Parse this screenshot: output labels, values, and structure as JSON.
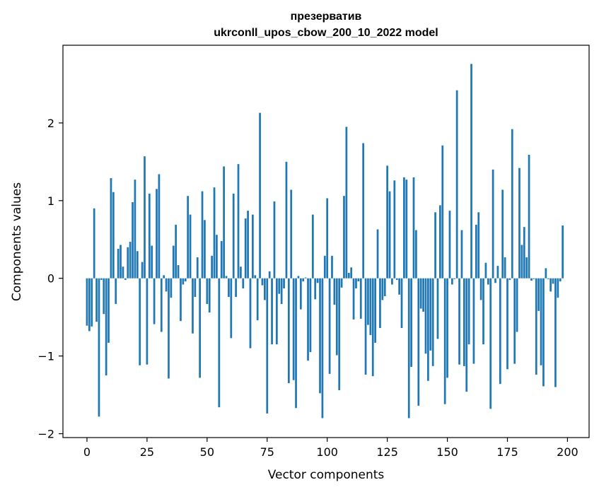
{
  "chart_data": {
    "type": "bar",
    "title_lines": [
      "презерватив",
      "ukrconll_upos_cbow_200_10_2022 model"
    ],
    "xlabel": "Vector components",
    "ylabel": "Components values",
    "xlim": [
      -10,
      209
    ],
    "ylim": [
      -2.05,
      3.0
    ],
    "xticks": [
      0,
      25,
      50,
      75,
      100,
      125,
      150,
      175,
      200
    ],
    "yticks": [
      -2,
      -1,
      0,
      1,
      2
    ],
    "ytick_labels": [
      "−2",
      "−1",
      "0",
      "1",
      "2"
    ],
    "grid": false,
    "bar_color": "#1f77b4",
    "series": [
      {
        "x_start": 0,
        "values": [
          -0.61,
          -0.68,
          -0.62,
          0.9,
          -0.56,
          -1.78,
          -0.02,
          -0.46,
          -1.25,
          -0.83,
          1.29,
          1.11,
          -0.33,
          0.38,
          0.43,
          0.15,
          -0.02,
          0.4,
          0.47,
          0.98,
          1.27,
          0.35,
          -1.12,
          0.21,
          1.57,
          -1.11,
          1.09,
          0.42,
          -0.59,
          1.15,
          1.34,
          -0.69,
          0.04,
          -0.17,
          -1.29,
          -0.25,
          0.42,
          0.69,
          0.17,
          -0.55,
          -0.08,
          -0.04,
          1.06,
          0.82,
          -0.71,
          -0.24,
          0.27,
          -1.28,
          1.12,
          0.75,
          -0.33,
          -0.44,
          0.29,
          1.17,
          0.56,
          -1.66,
          0.48,
          1.44,
          0.03,
          -0.24,
          -0.77,
          1.09,
          -0.24,
          1.47,
          0.15,
          -0.13,
          0.77,
          0.87,
          -0.9,
          0.82,
          0.04,
          -0.54,
          2.13,
          -0.09,
          -0.28,
          -1.74,
          0.09,
          -0.85,
          0.99,
          -0.85,
          -0.2,
          -0.33,
          -0.13,
          1.5,
          -1.35,
          1.14,
          -1.31,
          -1.67,
          0.03,
          -0.4,
          -0.04,
          0.01,
          -1.06,
          -0.95,
          0.82,
          -0.27,
          -0.06,
          -1.48,
          -1.8,
          0.29,
          1.03,
          -1.23,
          0.29,
          -0.34,
          -0.99,
          -1.44,
          -0.12,
          1.06,
          1.95,
          0.07,
          0.14,
          -0.53,
          -0.13,
          -0.04,
          -0.52,
          1.74,
          -1.24,
          -0.6,
          -0.73,
          -1.26,
          -0.83,
          0.63,
          -0.64,
          -0.28,
          -0.23,
          1.45,
          1.12,
          -0.08,
          1.26,
          -0.02,
          -0.21,
          -0.64,
          1.3,
          1.27,
          -1.8,
          -1.14,
          1.3,
          0.62,
          -1.64,
          -0.39,
          -0.43,
          -0.97,
          -1.32,
          -0.93,
          -1.13,
          0.85,
          -0.78,
          0.94,
          1.71,
          -1.62,
          -1.28,
          0.87,
          -0.08,
          -0.01,
          2.42,
          -1.11,
          0.62,
          -1.13,
          -1.46,
          -0.85,
          2.76,
          -1.1,
          0.69,
          0.85,
          -0.28,
          -0.85,
          0.2,
          -0.08,
          -1.68,
          1.4,
          -0.06,
          0.16,
          -1.36,
          1.14,
          0.27,
          -1.17,
          -0.02,
          1.92,
          -1.1,
          -0.69,
          1.42,
          0.43,
          0.66,
          0.27,
          1.59,
          -0.03,
          -0.01,
          -1.24,
          -0.42,
          -1.12,
          -1.39,
          0.13,
          -0.01,
          -0.17,
          -0.07,
          -1.4,
          -0.25,
          -0.04,
          0.68
        ]
      }
    ]
  }
}
